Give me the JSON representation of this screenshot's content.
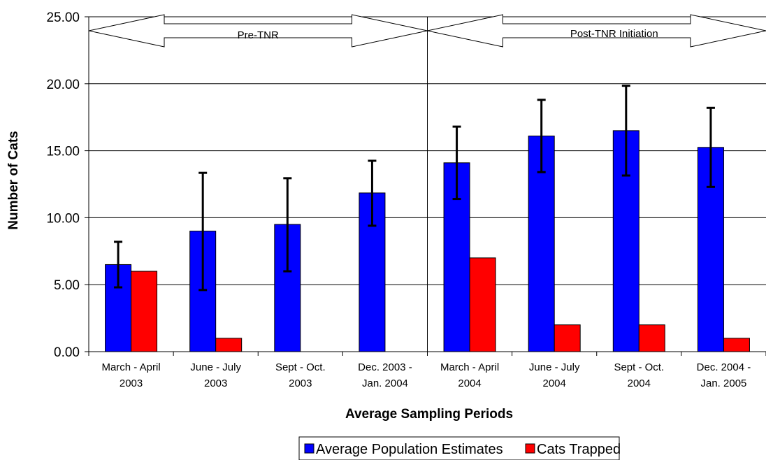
{
  "chart_data": {
    "type": "bar",
    "title": "",
    "xlabel": "Average Sampling Periods",
    "ylabel": "Number of Cats",
    "ylim": [
      0,
      25
    ],
    "yticks": [
      "0.00",
      "5.00",
      "10.00",
      "15.00",
      "20.00",
      "25.00"
    ],
    "grid": true,
    "legend_position": "bottom",
    "categories": [
      [
        "March - April",
        "2003"
      ],
      [
        "June - July",
        "2003"
      ],
      [
        "Sept - Oct.",
        "2003"
      ],
      [
        "Dec. 2003 -",
        "Jan. 2004"
      ],
      [
        "March - April",
        "2004"
      ],
      [
        "June - July",
        "2004"
      ],
      [
        "Sept - Oct.",
        "2004"
      ],
      [
        "Dec. 2004 -",
        "Jan. 2005"
      ]
    ],
    "series": [
      {
        "name": "Average Population Estimates",
        "color": "#0000FF",
        "values": [
          6.5,
          9.0,
          9.5,
          11.85,
          14.1,
          16.1,
          16.5,
          15.25
        ],
        "error_low": [
          4.8,
          4.6,
          6.0,
          9.4,
          11.4,
          13.4,
          13.15,
          12.3
        ],
        "error_high": [
          8.2,
          13.35,
          12.95,
          14.25,
          16.8,
          18.8,
          19.85,
          18.2
        ]
      },
      {
        "name": "Cats Trapped",
        "color": "#FF0000",
        "values": [
          6,
          1,
          0,
          0,
          7,
          2,
          2,
          1
        ]
      }
    ],
    "annotations": {
      "divider_after_category": 3,
      "pre_label": "Pre-TNR",
      "post_label": "Post-TNR Initiation"
    }
  }
}
